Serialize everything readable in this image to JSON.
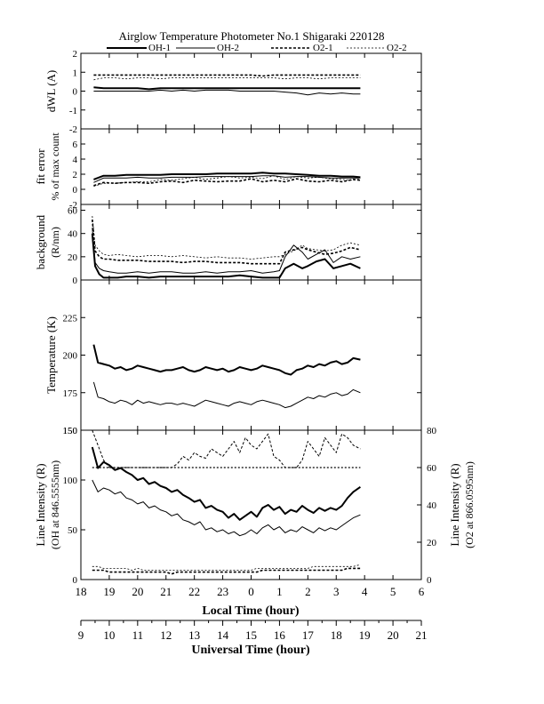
{
  "title": "Airglow Temperature Photometer No.1  Shigaraki   220128",
  "legend": [
    {
      "name": "OH-1",
      "style": "thick"
    },
    {
      "name": "OH-2",
      "style": "thin"
    },
    {
      "name": "O2-1",
      "style": "thick-dashed"
    },
    {
      "name": "O2-2",
      "style": "thin-dashed"
    }
  ],
  "local_time_label": "Local Time (hour)",
  "universal_time_label": "Universal Time (hour)",
  "local_ticks": [
    "18",
    "19",
    "20",
    "21",
    "22",
    "23",
    "0",
    "1",
    "2",
    "3",
    "4",
    "5",
    "6"
  ],
  "universal_ticks": [
    "9",
    "10",
    "11",
    "12",
    "13",
    "14",
    "15",
    "16",
    "17",
    "18",
    "19",
    "20",
    "21"
  ],
  "chart_data": [
    {
      "id": "dwl",
      "type": "line",
      "ylabel": "dWL (A)",
      "ylim": [
        -2,
        2
      ],
      "yticks": [
        "2",
        "1",
        "0",
        "-1",
        "-2"
      ],
      "x_hours_local": [
        18.45,
        18.8,
        19.2,
        19.6,
        20.0,
        20.4,
        20.8,
        21.2,
        21.6,
        22.0,
        22.4,
        22.8,
        23.2,
        23.6,
        24.0,
        24.4,
        24.8,
        25.2,
        25.6,
        26.0,
        26.4,
        26.8,
        27.2,
        27.6,
        27.85
      ],
      "series": [
        {
          "name": "OH-1",
          "values": [
            0.2,
            0.15,
            0.15,
            0.15,
            0.15,
            0.1,
            0.15,
            0.15,
            0.15,
            0.15,
            0.15,
            0.15,
            0.15,
            0.15,
            0.15,
            0.15,
            0.15,
            0.15,
            0.15,
            0.15,
            0.15,
            0.15,
            0.15,
            0.15,
            0.15
          ]
        },
        {
          "name": "OH-2",
          "values": [
            0.0,
            0.0,
            0.0,
            0.0,
            0.0,
            0.0,
            0.05,
            0.0,
            0.05,
            0.0,
            0.05,
            0.05,
            0.05,
            0.0,
            0.0,
            0.0,
            0.0,
            -0.05,
            -0.1,
            -0.2,
            -0.1,
            -0.15,
            -0.1,
            -0.15,
            -0.15
          ]
        },
        {
          "name": "O2-1",
          "values": [
            0.85,
            0.85,
            0.85,
            0.85,
            0.85,
            0.85,
            0.85,
            0.85,
            0.85,
            0.85,
            0.85,
            0.85,
            0.85,
            0.85,
            0.85,
            0.8,
            0.85,
            0.85,
            0.85,
            0.85,
            0.85,
            0.85,
            0.85,
            0.85,
            0.85
          ]
        },
        {
          "name": "O2-2",
          "values": [
            0.6,
            0.7,
            0.7,
            0.65,
            0.7,
            0.7,
            0.65,
            0.7,
            0.7,
            0.7,
            0.7,
            0.7,
            0.7,
            0.7,
            0.7,
            0.7,
            0.7,
            0.65,
            0.7,
            0.7,
            0.65,
            0.7,
            0.7,
            0.7,
            0.7
          ]
        }
      ]
    },
    {
      "id": "fit",
      "type": "line",
      "ylabel": "fit error",
      "ylabel2": "% of max count",
      "ylim": [
        -2,
        8
      ],
      "yticks": [
        "6",
        "4",
        "2",
        "0",
        "-2"
      ],
      "x_hours_local": [
        18.45,
        18.8,
        19.2,
        19.6,
        20.0,
        20.4,
        20.8,
        21.2,
        21.6,
        22.0,
        22.4,
        22.8,
        23.2,
        23.6,
        24.0,
        24.4,
        24.8,
        25.2,
        25.6,
        26.0,
        26.4,
        26.8,
        27.2,
        27.6,
        27.85
      ],
      "series": [
        {
          "name": "OH-1",
          "values": [
            1.3,
            1.8,
            1.8,
            1.9,
            1.9,
            1.9,
            1.9,
            2.0,
            2.0,
            2.0,
            2.0,
            2.1,
            2.1,
            2.1,
            2.1,
            2.2,
            2.1,
            2.1,
            2.0,
            1.9,
            1.8,
            1.8,
            1.7,
            1.7,
            1.6
          ]
        },
        {
          "name": "OH-2",
          "values": [
            0.9,
            1.5,
            1.5,
            1.5,
            1.6,
            1.5,
            1.5,
            1.6,
            1.6,
            1.6,
            1.7,
            1.7,
            1.7,
            1.7,
            1.7,
            1.8,
            1.8,
            1.6,
            1.7,
            1.7,
            1.6,
            1.5,
            1.5,
            1.5,
            1.5
          ]
        },
        {
          "name": "O2-1",
          "values": [
            0.5,
            0.9,
            0.8,
            0.9,
            0.9,
            0.8,
            1.0,
            1.1,
            0.9,
            1.2,
            1.1,
            1.0,
            1.1,
            1.1,
            1.4,
            1.0,
            1.2,
            1.0,
            1.4,
            1.1,
            1.0,
            1.2,
            1.0,
            1.3,
            1.2
          ]
        },
        {
          "name": "O2-2",
          "values": [
            0.4,
            0.8,
            0.8,
            0.9,
            1.0,
            1.0,
            1.3,
            1.2,
            1.4,
            1.6,
            1.3,
            1.5,
            1.7,
            1.5,
            1.6,
            1.4,
            1.8,
            1.3,
            1.7,
            1.5,
            1.6,
            1.4,
            1.3,
            1.2,
            1.4
          ]
        }
      ]
    },
    {
      "id": "bg",
      "type": "line",
      "ylabel": "background",
      "ylabel2": "(R/nm)",
      "ylim": [
        0,
        65
      ],
      "yticks": [
        "60",
        "40",
        "20",
        "0"
      ],
      "x_hours_local": [
        18.4,
        18.5,
        18.65,
        18.8,
        19.0,
        19.3,
        19.6,
        20.0,
        20.4,
        20.8,
        21.2,
        21.6,
        22.0,
        22.4,
        22.8,
        23.2,
        23.6,
        24.0,
        24.4,
        24.8,
        25.0,
        25.2,
        25.5,
        25.8,
        26.0,
        26.3,
        26.6,
        26.9,
        27.2,
        27.5,
        27.85
      ],
      "series": [
        {
          "name": "OH-1",
          "values": [
            40,
            12,
            5,
            2,
            2,
            2,
            3,
            3,
            2,
            3,
            3,
            3,
            3,
            3,
            3,
            3,
            4,
            3,
            2,
            2,
            2,
            10,
            14,
            10,
            12,
            16,
            18,
            10,
            12,
            14,
            10
          ]
        },
        {
          "name": "OH-2",
          "values": [
            45,
            15,
            10,
            8,
            7,
            6,
            6,
            7,
            6,
            7,
            7,
            6,
            6,
            7,
            6,
            7,
            7,
            8,
            6,
            7,
            8,
            20,
            30,
            24,
            18,
            22,
            26,
            15,
            20,
            18,
            20
          ]
        },
        {
          "name": "O2-1",
          "values": [
            52,
            25,
            20,
            18,
            18,
            17,
            17,
            17,
            16,
            16,
            16,
            15,
            16,
            16,
            15,
            15,
            15,
            14,
            14,
            14,
            14,
            24,
            26,
            28,
            26,
            24,
            22,
            23,
            25,
            28,
            26
          ]
        },
        {
          "name": "O2-2",
          "values": [
            55,
            30,
            25,
            22,
            21,
            22,
            21,
            20,
            21,
            21,
            20,
            21,
            20,
            19,
            20,
            19,
            19,
            18,
            19,
            20,
            20,
            22,
            25,
            30,
            27,
            26,
            25,
            26,
            30,
            32,
            30
          ]
        }
      ]
    },
    {
      "id": "temp",
      "type": "line",
      "ylabel": "Temperature (K)",
      "ylim": [
        150,
        250
      ],
      "yticks": [
        "225",
        "200",
        "175",
        "150"
      ],
      "x_hours_local": [
        18.45,
        18.6,
        18.8,
        19.0,
        19.2,
        19.4,
        19.6,
        19.8,
        20.0,
        20.2,
        20.4,
        20.6,
        20.8,
        21.0,
        21.2,
        21.4,
        21.6,
        21.8,
        22.0,
        22.2,
        22.4,
        22.6,
        22.8,
        23.0,
        23.2,
        23.4,
        23.6,
        23.8,
        24.0,
        24.2,
        24.4,
        24.6,
        24.8,
        25.0,
        25.2,
        25.4,
        25.6,
        25.8,
        26.0,
        26.2,
        26.4,
        26.6,
        26.8,
        27.0,
        27.2,
        27.4,
        27.6,
        27.85
      ],
      "series": [
        {
          "name": "OH-1",
          "values": [
            207,
            195,
            194,
            193,
            191,
            192,
            190,
            191,
            193,
            192,
            191,
            190,
            189,
            190,
            190,
            191,
            192,
            190,
            189,
            190,
            192,
            191,
            190,
            191,
            189,
            190,
            192,
            191,
            190,
            191,
            193,
            192,
            191,
            190,
            188,
            187,
            190,
            191,
            193,
            192,
            194,
            193,
            195,
            196,
            194,
            195,
            198,
            197
          ]
        },
        {
          "name": "OH-2",
          "values": [
            182,
            172,
            171,
            169,
            168,
            170,
            169,
            167,
            170,
            168,
            169,
            168,
            167,
            168,
            168,
            167,
            168,
            167,
            166,
            168,
            170,
            169,
            168,
            167,
            166,
            168,
            169,
            168,
            167,
            169,
            170,
            169,
            168,
            167,
            165,
            166,
            168,
            170,
            172,
            171,
            173,
            172,
            174,
            175,
            173,
            174,
            177,
            175
          ]
        }
      ]
    },
    {
      "id": "li",
      "type": "line",
      "ylabel": "Line Intensity (R)",
      "ylabel2": "(OH at 846.5555nm)",
      "ylim": [
        0,
        150
      ],
      "yticks": [
        "150",
        "100",
        "50",
        "0"
      ],
      "ylabel_right": "Line Intensity (R)",
      "ylabel_right2": "(O2 at 866.0595nm)",
      "ylim_right": [
        0,
        80
      ],
      "yticks_right": [
        "80",
        "60",
        "40",
        "20",
        "0"
      ],
      "x_hours_local": [
        18.4,
        18.6,
        18.8,
        19.0,
        19.2,
        19.4,
        19.6,
        19.8,
        20.0,
        20.2,
        20.4,
        20.6,
        20.8,
        21.0,
        21.2,
        21.4,
        21.6,
        21.8,
        22.0,
        22.2,
        22.4,
        22.6,
        22.8,
        23.0,
        23.2,
        23.4,
        23.6,
        23.8,
        24.0,
        24.2,
        24.4,
        24.6,
        24.8,
        25.0,
        25.2,
        25.4,
        25.6,
        25.8,
        26.0,
        26.2,
        26.4,
        26.6,
        26.8,
        27.0,
        27.2,
        27.4,
        27.6,
        27.85
      ],
      "series": [
        {
          "name": "OH-1",
          "axis": "left",
          "values": [
            133,
            112,
            118,
            115,
            110,
            112,
            108,
            105,
            100,
            102,
            96,
            98,
            94,
            92,
            88,
            90,
            85,
            82,
            78,
            80,
            72,
            74,
            70,
            68,
            62,
            66,
            60,
            64,
            68,
            63,
            72,
            75,
            70,
            73,
            66,
            70,
            68,
            74,
            70,
            67,
            72,
            69,
            72,
            70,
            74,
            82,
            88,
            93
          ]
        },
        {
          "name": "OH-2",
          "axis": "left",
          "values": [
            100,
            88,
            92,
            90,
            86,
            88,
            82,
            80,
            76,
            78,
            72,
            74,
            70,
            68,
            64,
            66,
            60,
            58,
            55,
            58,
            50,
            52,
            48,
            50,
            46,
            48,
            44,
            46,
            50,
            46,
            52,
            55,
            50,
            53,
            47,
            50,
            48,
            53,
            50,
            47,
            52,
            49,
            52,
            50,
            54,
            58,
            62,
            65
          ]
        },
        {
          "name": "O2-1",
          "axis": "right",
          "values": [
            5,
            5,
            5,
            4,
            4,
            4,
            4,
            4,
            4,
            4,
            4,
            4,
            4,
            4,
            3,
            4,
            4,
            4,
            4,
            4,
            4,
            4,
            4,
            4,
            4,
            4,
            4,
            4,
            4,
            4,
            5,
            5,
            5,
            5,
            5,
            5,
            5,
            5,
            5,
            5,
            5,
            5,
            5,
            5,
            5,
            6,
            6,
            6
          ]
        },
        {
          "name": "O2-2",
          "axis": "right",
          "values": [
            7,
            7,
            6,
            6,
            6,
            6,
            6,
            5,
            6,
            5,
            5,
            5,
            5,
            5,
            5,
            5,
            5,
            5,
            5,
            5,
            5,
            5,
            5,
            5,
            5,
            5,
            5,
            5,
            5,
            6,
            6,
            6,
            6,
            6,
            6,
            6,
            6,
            6,
            6,
            7,
            7,
            7,
            7,
            7,
            7,
            7,
            7,
            8
          ]
        },
        {
          "name": "O2-1 temp",
          "axis": "right",
          "values": [
            80,
            72,
            64,
            60,
            60,
            60,
            60,
            60,
            60,
            60,
            60,
            60,
            60,
            60,
            60,
            62,
            66,
            64,
            68,
            66,
            65,
            70,
            68,
            66,
            70,
            74,
            68,
            76,
            72,
            70,
            74,
            78,
            66,
            64,
            60,
            60,
            60,
            64,
            74,
            70,
            66,
            76,
            72,
            68,
            78,
            76,
            72,
            70
          ]
        },
        {
          "name": "O2-2 temp",
          "axis": "right",
          "values": [
            60,
            60,
            60,
            60,
            60,
            60,
            60,
            60,
            60,
            60,
            60,
            60,
            60,
            60,
            60,
            60,
            60,
            60,
            60,
            60,
            60,
            60,
            60,
            60,
            60,
            60,
            60,
            60,
            60,
            60,
            60,
            60,
            60,
            60,
            60,
            60,
            60,
            60,
            60,
            60,
            60,
            60,
            60,
            60,
            60,
            60,
            60,
            60
          ]
        }
      ]
    }
  ]
}
